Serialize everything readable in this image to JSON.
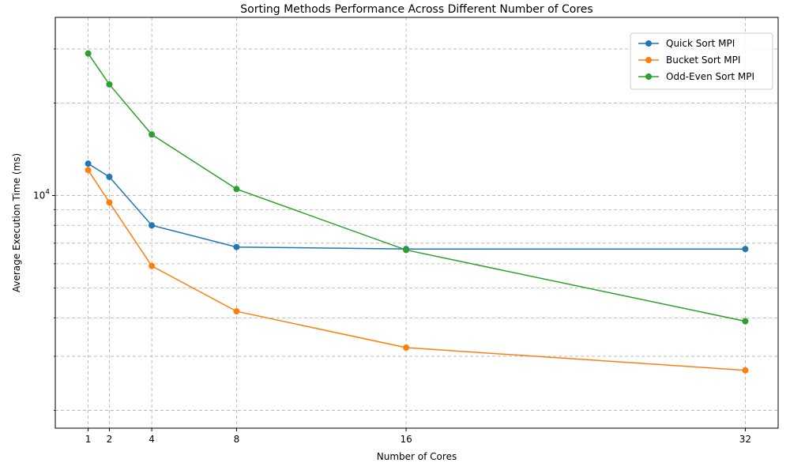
{
  "chart_data": {
    "type": "line",
    "title": "Sorting Methods Performance Across Different Number of Cores",
    "xlabel": "Number of Cores",
    "ylabel": "Average Execution Time (ms)",
    "y_scale": "log",
    "x": [
      1,
      2,
      4,
      8,
      16,
      32
    ],
    "x_tick_labels": [
      "1",
      "2",
      "4",
      "8",
      "16",
      "32"
    ],
    "xlim": [
      -0.55,
      33.55
    ],
    "ylim": [
      1750,
      38000
    ],
    "y_tick_major": [
      {
        "value": 10000,
        "base": "10",
        "exp": "4"
      }
    ],
    "y_tick_minor": [
      2000,
      3000,
      4000,
      5000,
      6000,
      7000,
      8000,
      9000,
      20000,
      30000
    ],
    "grid": true,
    "legend_position": "top-right",
    "series": [
      {
        "name": "Quick Sort MPI",
        "color": "#1f77b4",
        "values": [
          12700,
          11500,
          8000,
          6800,
          6700,
          6700
        ]
      },
      {
        "name": "Bucket Sort MPI",
        "color": "#ff7f0e",
        "values": [
          12100,
          9500,
          5900,
          4200,
          3200,
          2700
        ]
      },
      {
        "name": "Odd-Even Sort MPI",
        "color": "#2ca02c",
        "values": [
          29000,
          23000,
          15800,
          10500,
          6650,
          3900
        ]
      }
    ]
  }
}
